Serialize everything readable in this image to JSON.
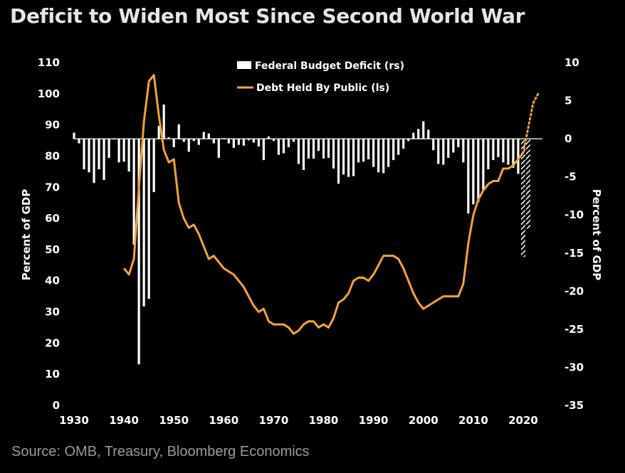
{
  "title": "Deficit to Widen Most Since Second World War",
  "source": "Source: OMB, Treasury, Bloomberg Economics",
  "colors": {
    "background": "#000000",
    "bars": "#ffffff",
    "line": "#f5a139",
    "text": "#ffffff"
  },
  "chart_data": {
    "type": "bar+line",
    "title": "Deficit to Widen Most Since Second World War",
    "x_ticks": [
      1930,
      1940,
      1950,
      1960,
      1970,
      1980,
      1990,
      2000,
      2010,
      2020
    ],
    "xlim": [
      1930,
      2023
    ],
    "left_axis": {
      "label": "Percent of GDP",
      "ticks": [
        0,
        10,
        20,
        30,
        40,
        50,
        60,
        70,
        80,
        90,
        100,
        110
      ],
      "ylim": [
        0,
        110
      ]
    },
    "right_axis": {
      "label": "Percent of GDP",
      "ticks": [
        -35,
        -30,
        -25,
        -20,
        -15,
        -10,
        -5,
        0,
        5,
        10
      ],
      "ylim": [
        -35,
        10
      ]
    },
    "legend": [
      {
        "label": "Federal Budget Deficit (rs)",
        "kind": "bar"
      },
      {
        "label": "Debt Held By Public (ls)",
        "kind": "line"
      }
    ],
    "deficit_series": {
      "name": "Federal Budget Deficit (rs)",
      "axis": "right",
      "x": [
        1930,
        1931,
        1932,
        1933,
        1934,
        1935,
        1936,
        1937,
        1938,
        1939,
        1940,
        1941,
        1942,
        1943,
        1944,
        1945,
        1946,
        1947,
        1948,
        1949,
        1950,
        1951,
        1952,
        1953,
        1954,
        1955,
        1956,
        1957,
        1958,
        1959,
        1960,
        1961,
        1962,
        1963,
        1964,
        1965,
        1966,
        1967,
        1968,
        1969,
        1970,
        1971,
        1972,
        1973,
        1974,
        1975,
        1976,
        1977,
        1978,
        1979,
        1980,
        1981,
        1982,
        1983,
        1984,
        1985,
        1986,
        1987,
        1988,
        1989,
        1990,
        1991,
        1992,
        1993,
        1994,
        1995,
        1996,
        1997,
        1998,
        1999,
        2000,
        2001,
        2002,
        2003,
        2004,
        2005,
        2006,
        2007,
        2008,
        2009,
        2010,
        2011,
        2012,
        2013,
        2014,
        2015,
        2016,
        2017,
        2018,
        2019,
        2020,
        2021
      ],
      "values": [
        0.8,
        -0.6,
        -4.0,
        -4.4,
        -5.8,
        -4.0,
        -5.4,
        -2.5,
        -0.1,
        -3.1,
        -3.0,
        -4.3,
        -13.9,
        -29.6,
        -22.0,
        -21.0,
        -7.0,
        1.7,
        4.5,
        0.2,
        -1.1,
        1.9,
        -0.4,
        -1.7,
        -0.3,
        -0.8,
        0.9,
        0.7,
        -0.6,
        -2.5,
        0.1,
        -0.6,
        -1.2,
        -0.8,
        -0.9,
        -0.2,
        -0.5,
        -1.0,
        -2.8,
        0.3,
        -0.3,
        -2.1,
        -1.9,
        -1.1,
        -0.4,
        -3.3,
        -4.1,
        -2.6,
        -2.6,
        -1.6,
        -2.6,
        -2.5,
        -3.9,
        -5.9,
        -4.7,
        -5.0,
        -4.9,
        -3.1,
        -3.0,
        -2.7,
        -3.7,
        -4.4,
        -4.5,
        -3.7,
        -2.8,
        -2.1,
        -1.3,
        -0.3,
        0.8,
        1.3,
        2.3,
        1.2,
        -1.5,
        -3.3,
        -3.4,
        -2.5,
        -1.8,
        -1.1,
        -3.1,
        -9.8,
        -8.6,
        -8.3,
        -6.7,
        -4.0,
        -2.8,
        -2.4,
        -3.1,
        -3.4,
        -3.8,
        -4.6,
        -15.5,
        -11.8
      ]
    },
    "debt_series": {
      "name": "Debt Held By Public (ls)",
      "axis": "left",
      "x": [
        1940,
        1941,
        1942,
        1943,
        1944,
        1945,
        1946,
        1947,
        1948,
        1949,
        1950,
        1951,
        1952,
        1953,
        1954,
        1955,
        1956,
        1957,
        1958,
        1959,
        1960,
        1961,
        1962,
        1963,
        1964,
        1965,
        1966,
        1967,
        1968,
        1969,
        1970,
        1971,
        1972,
        1973,
        1974,
        1975,
        1976,
        1977,
        1978,
        1979,
        1980,
        1981,
        1982,
        1983,
        1984,
        1985,
        1986,
        1987,
        1988,
        1989,
        1990,
        1991,
        1992,
        1993,
        1994,
        1995,
        1996,
        1997,
        1998,
        1999,
        2000,
        2001,
        2002,
        2003,
        2004,
        2005,
        2006,
        2007,
        2008,
        2009,
        2010,
        2011,
        2012,
        2013,
        2014,
        2015,
        2016,
        2017,
        2018,
        2019,
        2020
      ],
      "values": [
        44,
        42,
        47,
        70,
        91,
        104,
        106,
        93,
        82,
        78,
        79,
        65,
        60,
        57,
        58,
        55,
        51,
        47,
        48,
        46,
        44,
        43,
        42,
        40,
        38,
        35,
        32,
        30,
        31,
        27,
        26,
        26,
        26,
        25,
        23,
        24,
        26,
        27,
        27,
        25,
        26,
        25,
        28,
        33,
        34,
        36,
        40,
        41,
        41,
        40,
        42,
        45,
        48,
        48,
        48,
        47,
        44,
        40,
        36,
        33,
        31,
        32,
        33,
        34,
        35,
        35,
        35,
        35,
        39,
        52,
        61,
        66,
        69,
        71,
        72,
        72,
        76,
        76,
        77,
        79,
        81
      ]
    },
    "projection_series": {
      "name": "projection",
      "debt": {
        "x": [
          2020,
          2021,
          2022,
          2023
        ],
        "values": [
          81,
          89,
          97,
          100
        ]
      },
      "deficit": {
        "x": [
          2020,
          2021
        ],
        "values": [
          -15.5,
          -11.8
        ]
      }
    }
  }
}
